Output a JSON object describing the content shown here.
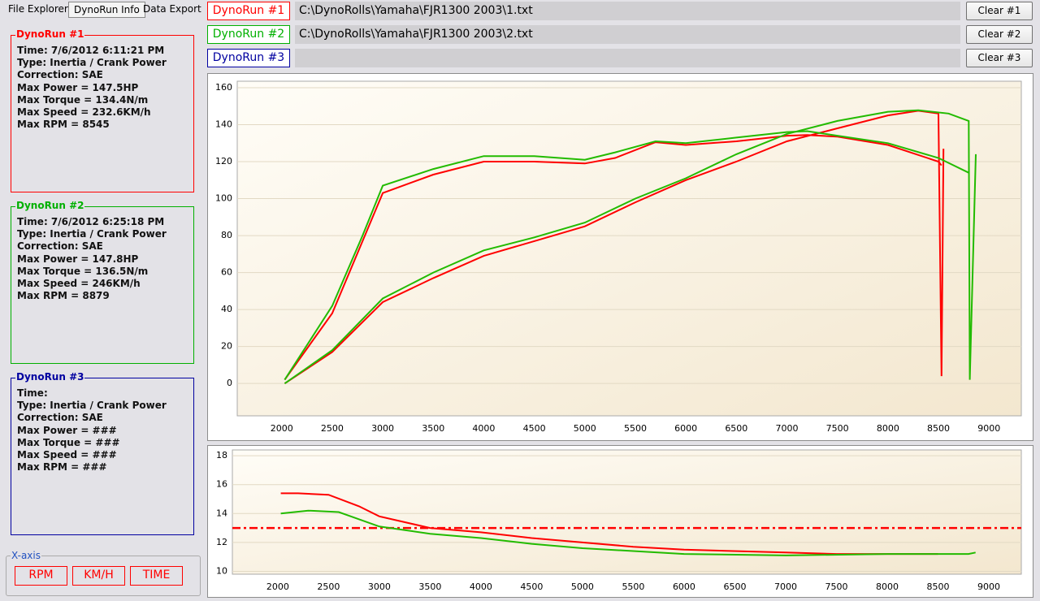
{
  "tabs": {
    "items": [
      "File Explorer",
      "DynoRun Info",
      "Data Export"
    ],
    "active": 1
  },
  "runs": [
    {
      "title": "DynoRun #1",
      "color": "#ff0000",
      "lines": [
        "Time: 7/6/2012 6:11:21 PM",
        "Type: Inertia / Crank Power",
        "Correction: SAE",
        "Max Power =  147.5HP",
        "Max Torque =  134.4N/m",
        "Max Speed =  232.6KM/h",
        "Max RPM =  8545"
      ]
    },
    {
      "title": "DynoRun #2",
      "color": "#00b000",
      "lines": [
        "Time: 7/6/2012 6:25:18 PM",
        "Type: Inertia / Crank Power",
        "Correction: SAE",
        "Max Power =  147.8HP",
        "Max Torque =  136.5N/m",
        "Max Speed =  246KM/h",
        "Max RPM =  8879"
      ]
    },
    {
      "title": "DynoRun #3",
      "color": "#0000a0",
      "lines": [
        "Time:",
        "Type: Inertia / Crank Power",
        "Correction: SAE",
        "Max Power = ###",
        "Max Torque = ###",
        "Max Speed = ###",
        "Max RPM = ###"
      ]
    }
  ],
  "files": [
    {
      "label": "DynoRun #1",
      "color": "#ff0000",
      "path": "C:\\DynoRolls\\Yamaha\\FJR1300 2003\\1.txt",
      "button": "Clear #1"
    },
    {
      "label": "DynoRun #2",
      "color": "#00b000",
      "path": "C:\\DynoRolls\\Yamaha\\FJR1300 2003\\2.txt",
      "button": "Clear #2"
    },
    {
      "label": "DynoRun #3",
      "color": "#0000a0",
      "button": "Clear #3"
    }
  ],
  "xaxis": {
    "title": "X-axis",
    "buttons": [
      "RPM",
      "KM/H",
      "TIME"
    ]
  },
  "chart_data": [
    {
      "type": "line",
      "xlim": [
        1560,
        9320
      ],
      "ylim": [
        -17.5,
        163.5
      ],
      "xticks": [
        2000,
        2500,
        3000,
        3500,
        4000,
        4500,
        5000,
        5500,
        6000,
        6500,
        7000,
        7500,
        8000,
        8500,
        9000
      ],
      "yticks": [
        0,
        20,
        40,
        60,
        80,
        100,
        120,
        140,
        160
      ],
      "grid": true,
      "series": [
        {
          "color": "#ff0000",
          "x": [
            2030,
            2500,
            3000,
            3500,
            4000,
            4500,
            5000,
            5500,
            6000,
            6500,
            7000,
            7500,
            8000,
            8300,
            8500,
            8530,
            8550
          ],
          "values": [
            0,
            17,
            44,
            57,
            69,
            77,
            85,
            98,
            110,
            120,
            131,
            138,
            145,
            147.5,
            146,
            4,
            127
          ]
        },
        {
          "color": "#ff0000",
          "x": [
            2030,
            2500,
            3000,
            3500,
            4000,
            4500,
            5000,
            5300,
            5700,
            6000,
            6500,
            7000,
            7200,
            7500,
            8000,
            8500,
            8530
          ],
          "values": [
            2,
            38,
            103,
            113,
            120,
            120,
            119,
            122,
            130.5,
            129,
            131,
            134,
            134.4,
            133.5,
            129,
            120,
            118
          ]
        },
        {
          "color": "#22bb00",
          "x": [
            2030,
            2500,
            3000,
            3500,
            4000,
            4500,
            5000,
            5500,
            6000,
            6500,
            7000,
            7500,
            8000,
            8300,
            8600,
            8800,
            8810,
            8870
          ],
          "values": [
            0,
            18,
            46,
            60,
            72,
            79,
            87,
            100,
            111,
            124,
            135,
            142,
            147,
            147.8,
            146,
            142,
            2,
            124
          ]
        },
        {
          "color": "#22bb00",
          "x": [
            2030,
            2500,
            2800,
            3000,
            3500,
            4000,
            4500,
            5000,
            5300,
            5700,
            6000,
            6500,
            7000,
            7200,
            7500,
            8000,
            8500,
            8800
          ],
          "values": [
            2,
            42,
            80,
            107,
            116,
            123,
            123,
            121,
            125,
            131,
            130,
            133,
            136,
            136.5,
            134,
            130,
            122,
            114
          ]
        }
      ]
    },
    {
      "type": "line",
      "xlim": [
        1553,
        9320
      ],
      "ylim": [
        9.8,
        18.4
      ],
      "xticks": [
        2000,
        2500,
        3000,
        3500,
        4000,
        4500,
        5000,
        5500,
        6000,
        6500,
        7000,
        7500,
        8000,
        8500,
        9000
      ],
      "yticks": [
        10,
        12,
        14,
        16,
        18
      ],
      "grid": true,
      "reference": 13,
      "reference_color": "#ff0000",
      "series": [
        {
          "color": "#ff0000",
          "x": [
            2030,
            2200,
            2500,
            2800,
            3000,
            3500,
            4000,
            4500,
            5000,
            5500,
            6000,
            7000,
            7500,
            8000,
            8500
          ],
          "values": [
            15.4,
            15.4,
            15.3,
            14.5,
            13.8,
            13.0,
            12.7,
            12.3,
            12.0,
            11.7,
            11.5,
            11.3,
            11.2,
            11.2,
            11.2
          ]
        },
        {
          "color": "#22bb00",
          "x": [
            2030,
            2300,
            2600,
            3000,
            3500,
            4000,
            4500,
            5000,
            5500,
            6000,
            7000,
            8000,
            8800,
            8870
          ],
          "values": [
            14.0,
            14.2,
            14.1,
            13.1,
            12.6,
            12.3,
            11.9,
            11.6,
            11.4,
            11.2,
            11.1,
            11.2,
            11.2,
            11.3
          ]
        }
      ]
    }
  ]
}
